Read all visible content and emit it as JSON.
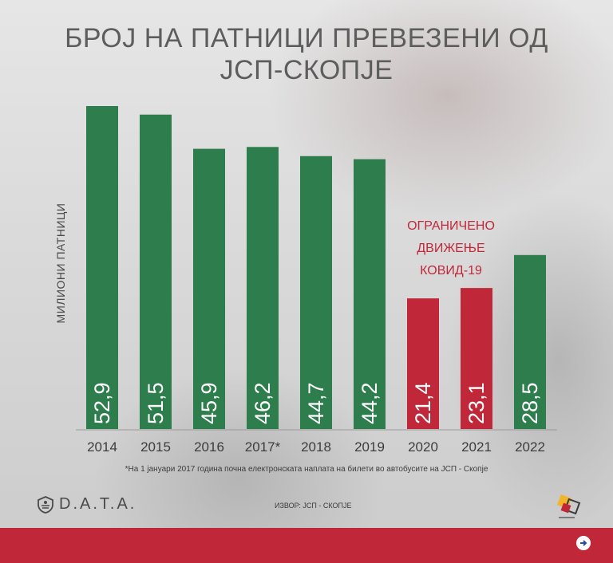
{
  "title": "БРОЈ НА ПАТНИЦИ ПРЕВЕЗЕНИ ОД ЈСП-СКОПЈЕ",
  "covid_note": [
    "ОГРАНИЧЕНО",
    "ДВИЖЕЊЕ",
    "КОВИД-19"
  ],
  "footnote": "*На 1 јануари 2017 година почна електронската наплата на билети во автобусите на ЈСП - Скопје",
  "source": "ИЗВОР: ЈСП - СКОПЈЕ",
  "logo": {
    "text": "D.A.T.A.",
    "icon": "helmet-shield-icon"
  },
  "meta_logo": {
    "icon": "meta-cube-icon"
  },
  "colors": {
    "green": "#2e7d4c",
    "red": "#c0283a",
    "title": "#5d5d5d"
  },
  "chart_data": {
    "type": "bar",
    "title": "БРОЈ НА ПАТНИЦИ ПРЕВЕЗЕНИ ОД ЈСП-СКОПЈЕ",
    "ylabel": "МИЛИОНИ ПАТНИЦИ",
    "xlabel": "",
    "categories": [
      "2014",
      "2015",
      "2016",
      "2017*",
      "2018",
      "2019",
      "2020",
      "2021",
      "2022"
    ],
    "values": [
      52.9,
      51.5,
      45.9,
      46.2,
      44.7,
      44.2,
      21.4,
      23.1,
      28.5
    ],
    "labels": [
      "52,9",
      "51,5",
      "45,9",
      "46,2",
      "44,7",
      "44,2",
      "21,4",
      "23,1",
      "28,5"
    ],
    "bar_colors": [
      "#2e7d4c",
      "#2e7d4c",
      "#2e7d4c",
      "#2e7d4c",
      "#2e7d4c",
      "#2e7d4c",
      "#c0283a",
      "#c0283a",
      "#2e7d4c"
    ],
    "ylim": [
      0,
      52.9
    ],
    "grid": false,
    "legend": "none"
  }
}
